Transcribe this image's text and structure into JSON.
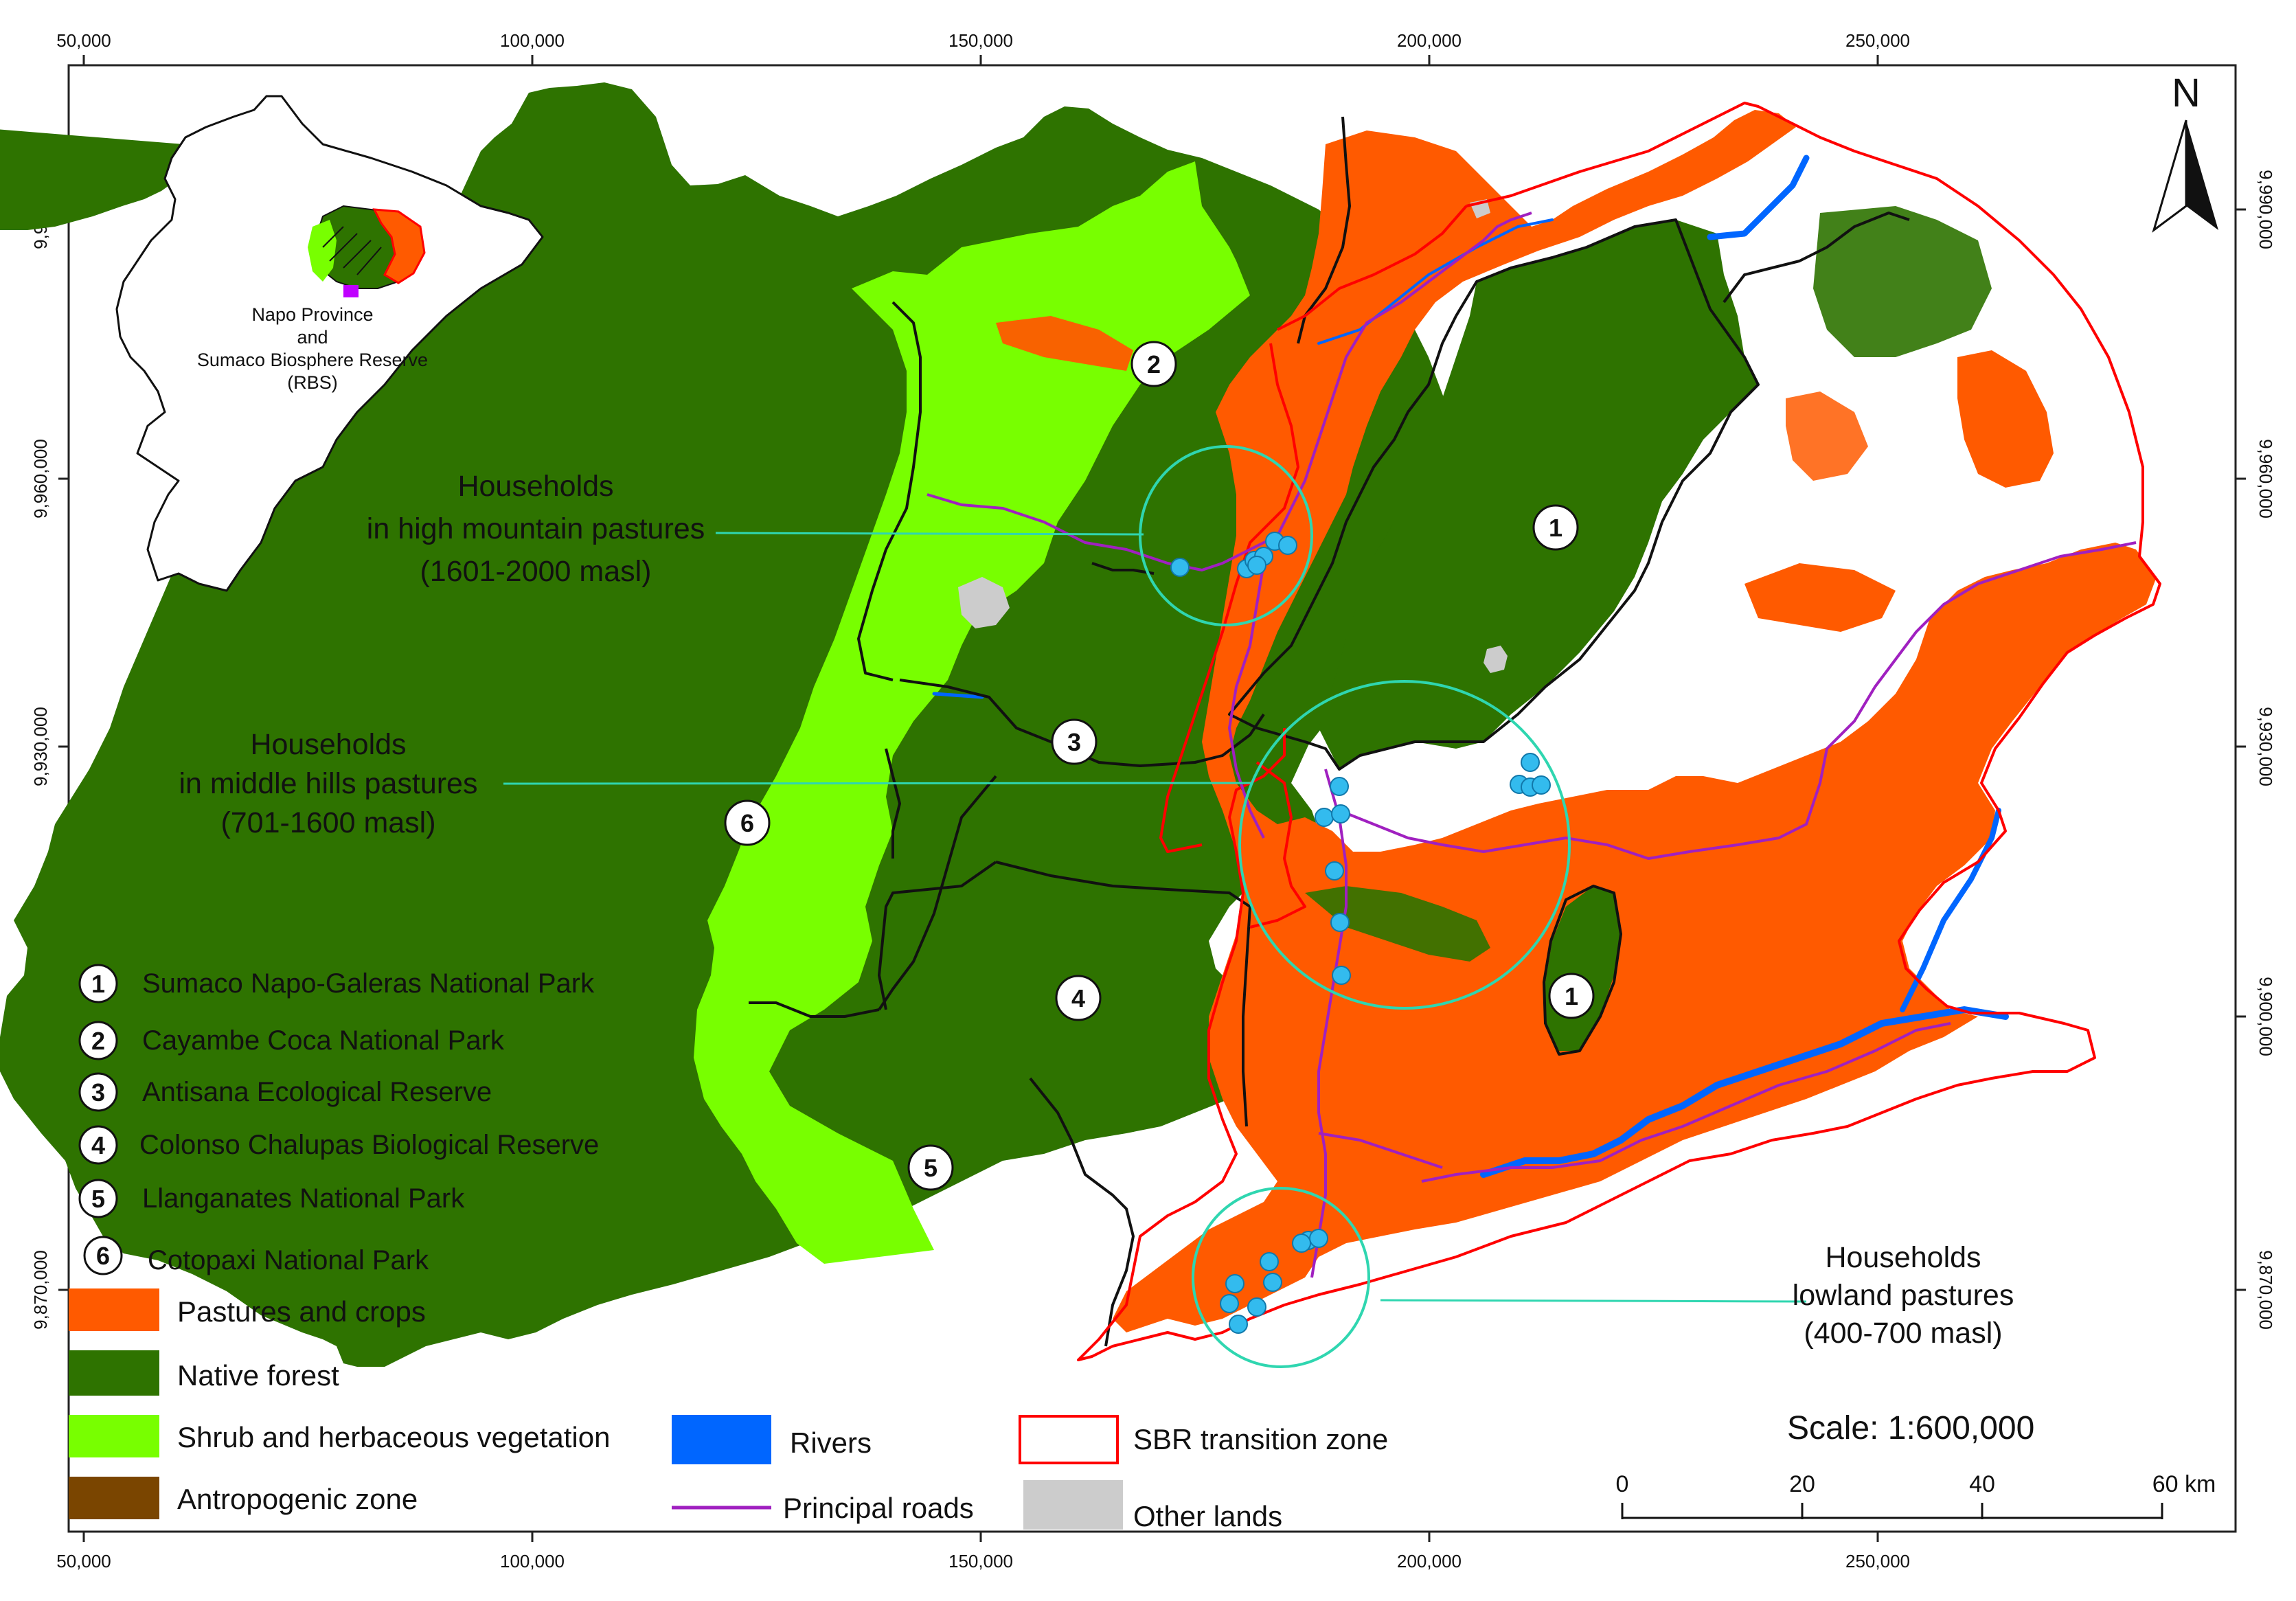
{
  "map": {
    "x_ticks": [
      "50,000",
      "100,000",
      "150,000",
      "200,000",
      "250,000"
    ],
    "y_ticks": [
      "9,990,000",
      "9,960,000",
      "9,930,000",
      "9,900,000",
      "9,870,000"
    ],
    "north_label": "N",
    "inset_label": [
      "Napo Province",
      "and",
      "Sumaco Biosphere Reserve",
      "(RBS)"
    ],
    "annotations": {
      "high": [
        "Households",
        "in high mountain pastures",
        "(1601-2000 masl)"
      ],
      "middle": [
        "Households",
        "in middle hills pastures",
        "(701-1600 masl)"
      ],
      "low": [
        "Households",
        "lowland pastures",
        "(400-700 masl)"
      ]
    },
    "area_markers": [
      "1",
      "2",
      "3",
      "4",
      "5",
      "6"
    ],
    "protected_areas": [
      {
        "num": "1",
        "name": "Sumaco Napo-Galeras National Park"
      },
      {
        "num": "2",
        "name": "Cayambe Coca National Park"
      },
      {
        "num": "3",
        "name": "Antisana Ecological Reserve"
      },
      {
        "num": "4",
        "name": "Colonso Chalupas Biological Reserve"
      },
      {
        "num": "5",
        "name": "Llanganates National Park"
      },
      {
        "num": "6",
        "name": "Cotopaxi National Park"
      }
    ],
    "land_cover_legend": [
      {
        "label": "Pastures and crops",
        "color": "#ff5a00"
      },
      {
        "label": "Native forest",
        "color": "#2e7300"
      },
      {
        "label": "Shrub and herbaceous vegetation",
        "color": "#78ff00"
      },
      {
        "label": "Antropogenic zone",
        "color": "#7a4500"
      }
    ],
    "other_legend": {
      "rivers": "Rivers",
      "roads": "Principal roads",
      "transition": "SBR transition zone",
      "other_lands": "Other lands"
    },
    "scale": {
      "title": "Scale: 1:600,000",
      "ticks": [
        "0",
        "20",
        "40",
        "60 km"
      ]
    },
    "colors": {
      "pasture": "#ff5a00",
      "forest": "#2e7300",
      "shrub": "#78ff00",
      "anthropogenic": "#7a4500",
      "river": "#0066ff",
      "road": "#a020c0",
      "transition": "#ff0000",
      "other_lands": "#cccccc",
      "household": "#33bbee",
      "circle": "#2fd6b0"
    }
  }
}
